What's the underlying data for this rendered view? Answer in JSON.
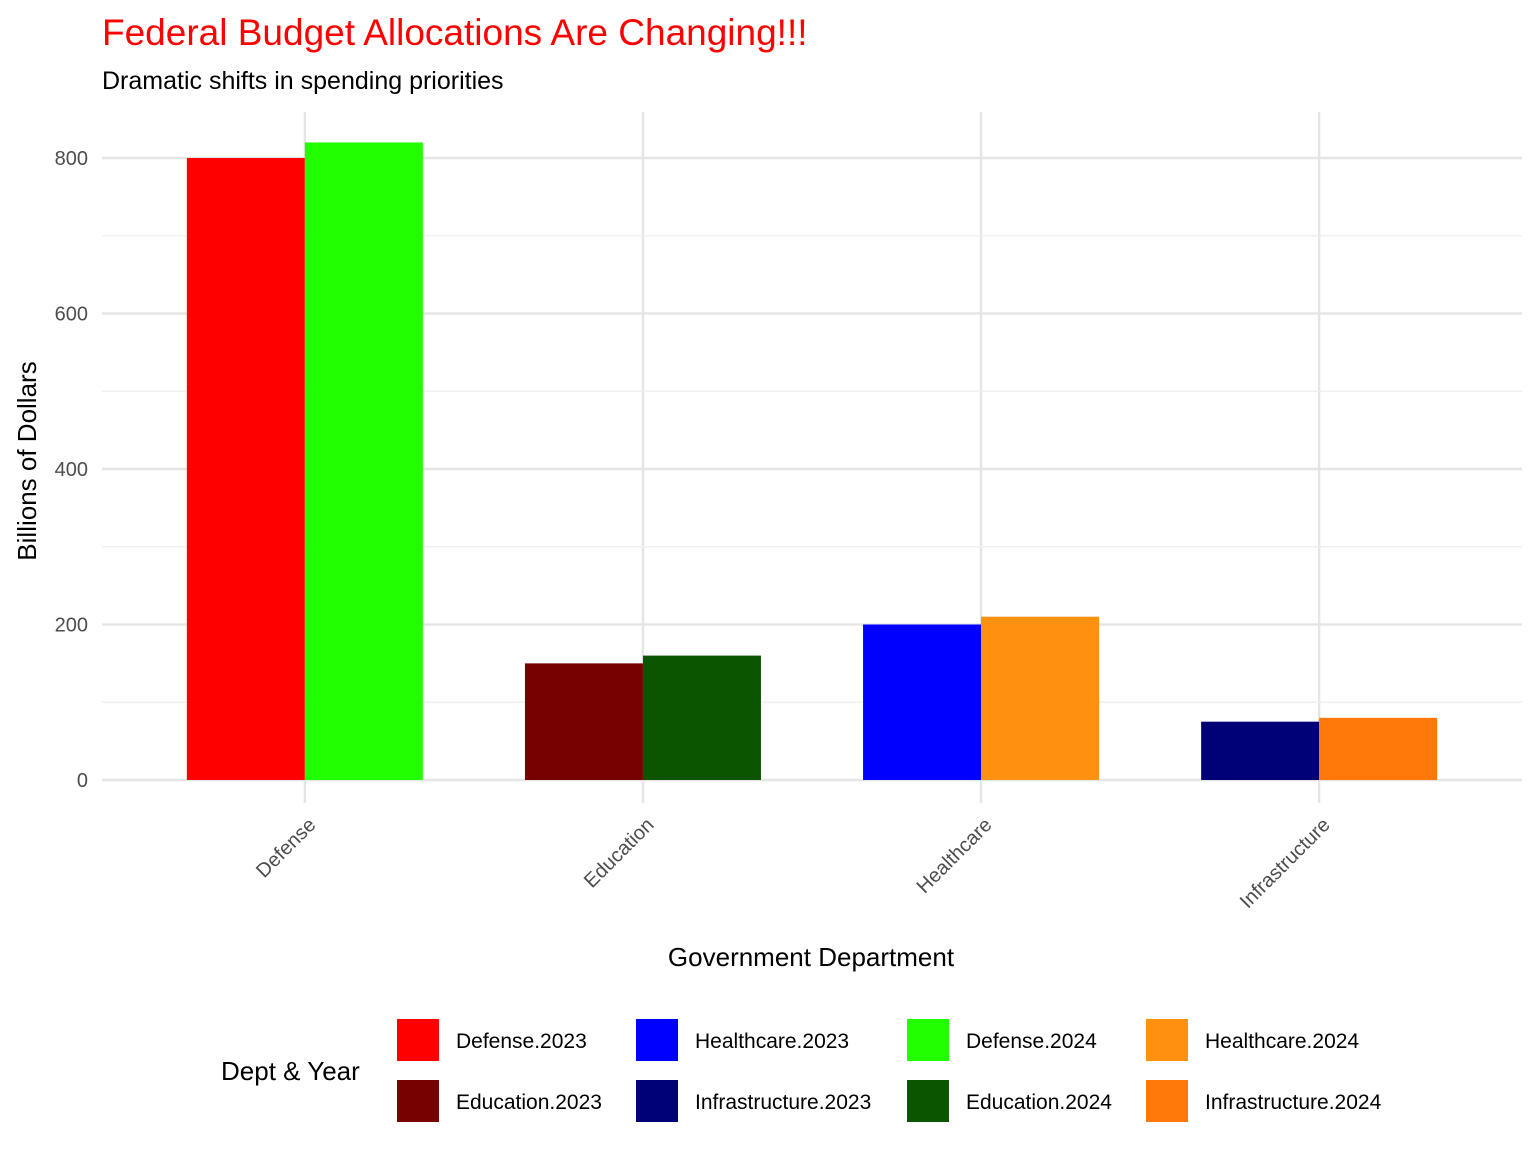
{
  "chart_data": {
    "type": "bar",
    "title": "Federal Budget Allocations Are Changing!!!",
    "title_color": "#ff0000",
    "subtitle": "Dramatic shifts in spending priorities",
    "xlabel": "Government Department",
    "ylabel": "Billions of Dollars",
    "categories": [
      "Defense",
      "Education",
      "Healthcare",
      "Infrastructure"
    ],
    "ylim": [
      -30,
      860
    ],
    "yticks": [
      0,
      200,
      400,
      600,
      800
    ],
    "series": [
      {
        "name": "2023",
        "values": [
          800,
          150,
          200,
          75
        ],
        "labels": [
          "Defense.2023",
          "Education.2023",
          "Healthcare.2023",
          "Infrastructure.2023"
        ],
        "colors": [
          "#ff0000",
          "#770000",
          "#0000ff",
          "#000077"
        ]
      },
      {
        "name": "2024",
        "values": [
          820,
          160,
          210,
          80
        ],
        "labels": [
          "Defense.2024",
          "Education.2024",
          "Healthcare.2024",
          "Infrastructure.2024"
        ],
        "colors": [
          "#22ff00",
          "#0b5500",
          "#ff9010",
          "#ff780a"
        ]
      }
    ],
    "legend": {
      "title": "Dept & Year",
      "position": "bottom",
      "entries": [
        {
          "label": "Defense.2023",
          "color": "#ff0000"
        },
        {
          "label": "Education.2023",
          "color": "#770000"
        },
        {
          "label": "Healthcare.2023",
          "color": "#0000ff"
        },
        {
          "label": "Infrastructure.2023",
          "color": "#000077"
        },
        {
          "label": "Defense.2024",
          "color": "#22ff00"
        },
        {
          "label": "Education.2024",
          "color": "#0b5500"
        },
        {
          "label": "Healthcare.2024",
          "color": "#ff9010"
        },
        {
          "label": "Infrastructure.2024",
          "color": "#ff780a"
        }
      ]
    }
  }
}
